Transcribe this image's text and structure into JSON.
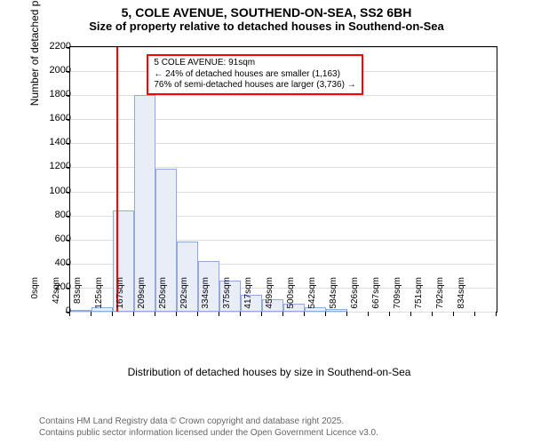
{
  "title": {
    "line1": "5, COLE AVENUE, SOUTHEND-ON-SEA, SS2 6BH",
    "line2": "Size of property relative to detached houses in Southend-on-Sea"
  },
  "chart": {
    "type": "histogram",
    "ylabel": "Number of detached properties",
    "xlabel": "Distribution of detached houses by size in Southend-on-Sea",
    "ylim": [
      0,
      2200
    ],
    "yticks": [
      0,
      200,
      400,
      600,
      800,
      1000,
      1200,
      1400,
      1600,
      1800,
      2000,
      2200
    ],
    "xticks": [
      "0sqm",
      "42sqm",
      "83sqm",
      "125sqm",
      "167sqm",
      "209sqm",
      "250sqm",
      "292sqm",
      "334sqm",
      "375sqm",
      "417sqm",
      "459sqm",
      "500sqm",
      "542sqm",
      "584sqm",
      "626sqm",
      "667sqm",
      "709sqm",
      "751sqm",
      "792sqm",
      "834sqm"
    ],
    "bar_values": [
      10,
      40,
      840,
      1800,
      1190,
      580,
      420,
      260,
      140,
      100,
      70,
      40,
      25
    ],
    "bar_fill": "#e9edf8",
    "bar_stroke": "#8faadc",
    "grid_color": "#dddddd",
    "background": "#ffffff",
    "axis_color": "#000000",
    "tick_fontsize": 11,
    "xtick_fontsize": 10,
    "label_fontsize": 12,
    "title_fontsize": 14
  },
  "marker": {
    "x_value": 91,
    "x_domain_max": 834,
    "color": "#ff0000",
    "callout": {
      "line1": "5 COLE AVENUE: 91sqm",
      "line2": "← 24% of detached houses are smaller (1,163)",
      "line3": "76% of semi-detached houses are larger (3,736) →"
    }
  },
  "footer": {
    "line1": "Contains HM Land Registry data © Crown copyright and database right 2025.",
    "line2": "Contains public sector information licensed under the Open Government Licence v3.0."
  }
}
